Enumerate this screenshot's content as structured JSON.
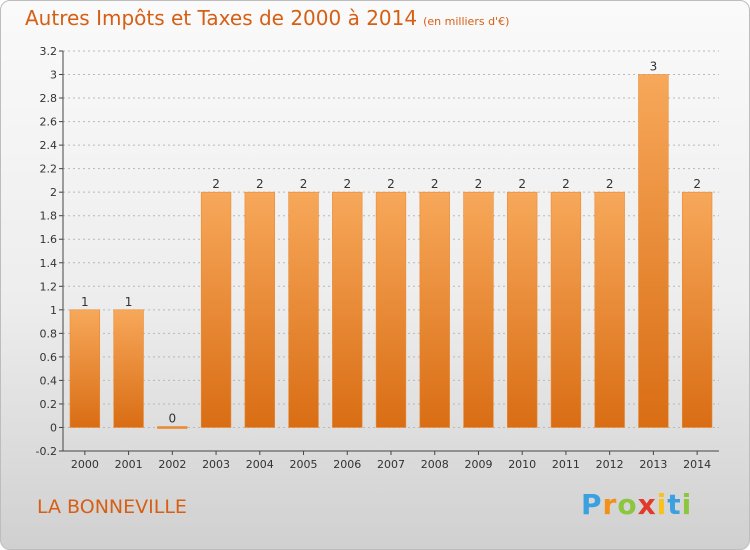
{
  "header": {
    "title": "Autres Impôts et Taxes de 2000 à 2014",
    "unit": "(en milliers d'€)"
  },
  "place": "LA BONNEVILLE",
  "logo": {
    "text": "Proxiti",
    "colors": [
      "#3aa0e0",
      "#f29018",
      "#8cc63f",
      "#e23a2a",
      "#f7c21b",
      "#3aa0e0",
      "#8cc63f"
    ]
  },
  "chart_data": {
    "type": "bar",
    "categories": [
      "2000",
      "2001",
      "2002",
      "2003",
      "2004",
      "2005",
      "2006",
      "2007",
      "2008",
      "2009",
      "2010",
      "2011",
      "2012",
      "2013",
      "2014"
    ],
    "values": [
      1,
      1,
      0,
      2,
      2,
      2,
      2,
      2,
      2,
      2,
      2,
      2,
      2,
      3,
      2
    ],
    "labels": [
      "1",
      "1",
      "0",
      "2",
      "2",
      "2",
      "2",
      "2",
      "2",
      "2",
      "2",
      "2",
      "2",
      "3",
      "2"
    ],
    "ylim": [
      -0.2,
      3.2
    ],
    "yticks": [
      -0.2,
      0,
      0.2,
      0.4,
      0.6,
      0.8,
      1,
      1.2,
      1.4,
      1.6,
      1.8,
      2,
      2.2,
      2.4,
      2.6,
      2.8,
      3,
      3.2
    ],
    "ytick_labels": [
      "-0.2",
      "0",
      "0.2",
      "0.4",
      "0.6",
      "0.8",
      "1",
      "1.2",
      "1.4",
      "1.6",
      "1.8",
      "2",
      "2.2",
      "2.4",
      "2.6",
      "2.8",
      "3",
      "3.2"
    ],
    "grid": true,
    "bar_color": "#f0861e"
  }
}
